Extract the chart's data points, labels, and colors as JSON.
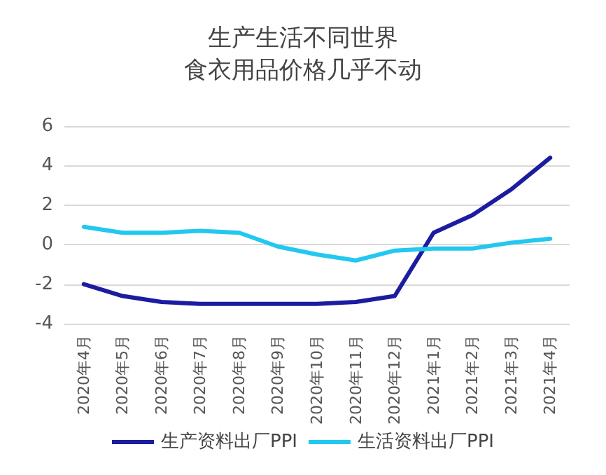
{
  "chart_data": {
    "type": "line",
    "title": "生产生活不同世界",
    "subtitle": "食衣用品价格几乎不动",
    "categories": [
      "2020年4月",
      "2020年5月",
      "2020年6月",
      "2020年7月",
      "2020年8月",
      "2020年9月",
      "2020年10月",
      "2020年11月",
      "2020年12月",
      "2021年1月",
      "2021年2月",
      "2021年3月",
      "2021年4月"
    ],
    "series": [
      {
        "name": "生产资料出厂PPI",
        "color": "#1c1ca0",
        "values": [
          -2.0,
          -2.6,
          -2.9,
          -3.0,
          -3.0,
          -3.0,
          -3.0,
          -2.9,
          -2.6,
          0.6,
          1.5,
          2.8,
          4.4
        ]
      },
      {
        "name": "生活资料出厂PPI",
        "color": "#22c8f0",
        "values": [
          0.9,
          0.6,
          0.6,
          0.7,
          0.6,
          -0.1,
          -0.5,
          -0.8,
          -0.3,
          -0.2,
          -0.2,
          0.1,
          0.3
        ]
      }
    ],
    "ylim": [
      -4,
      6
    ],
    "yticks": [
      -4,
      -2,
      0,
      2,
      4,
      6
    ],
    "grid": "y",
    "legend": "bottom",
    "marker": "none",
    "line_style": "solid"
  }
}
